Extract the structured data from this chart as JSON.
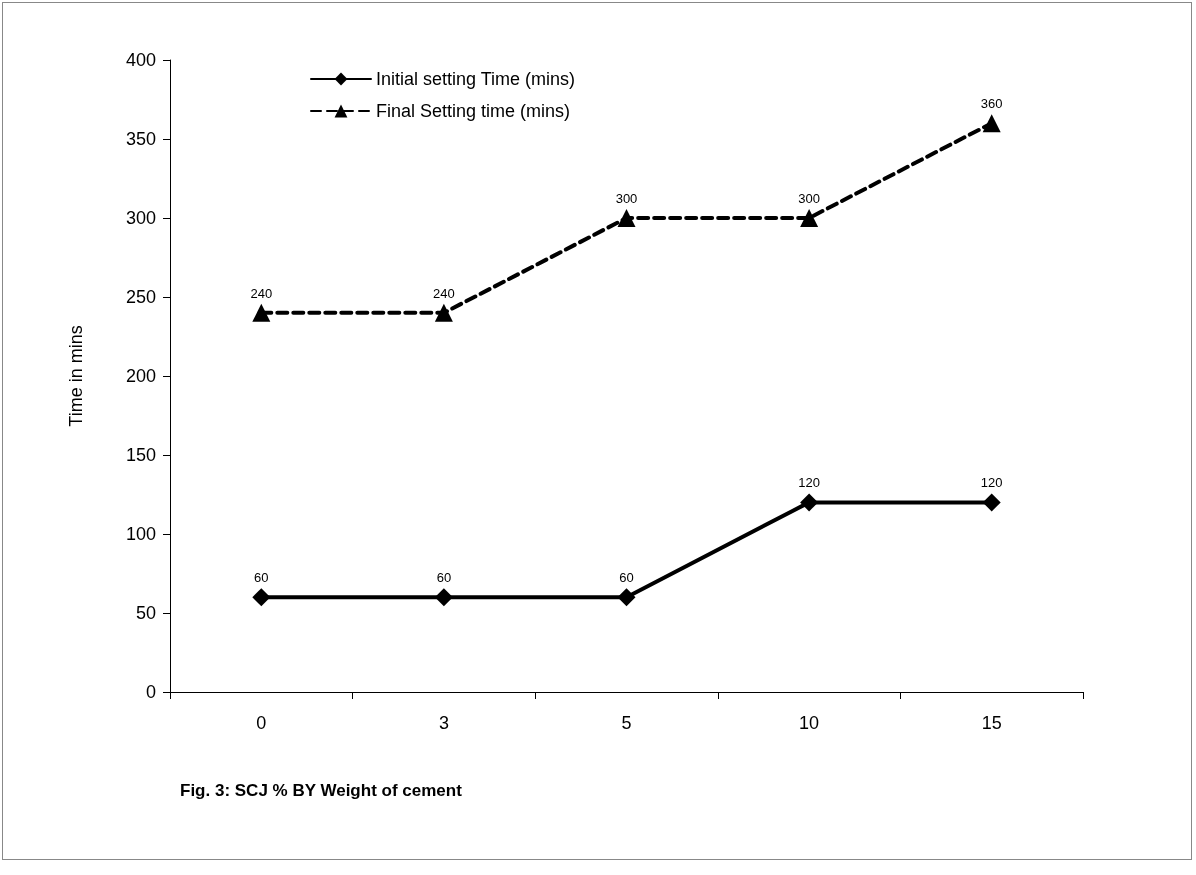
{
  "chart_data": {
    "type": "line",
    "xlabel": "Fig. 3: SCJ % BY Weight of cement",
    "ylabel": "Time in mins",
    "categories": [
      "0",
      "3",
      "5",
      "10",
      "15"
    ],
    "series": [
      {
        "name": "Initial setting Time (mins)",
        "color": "#000000",
        "marker": "diamond",
        "line_style": "solid",
        "values": [
          60,
          60,
          60,
          120,
          120
        ]
      },
      {
        "name": "Final Setting time (mins)",
        "color": "#000000",
        "marker": "triangle",
        "line_style": "dashed",
        "values": [
          240,
          240,
          300,
          300,
          360
        ]
      }
    ],
    "ylim": [
      0,
      400
    ],
    "yticks": [
      0,
      50,
      100,
      150,
      200,
      250,
      300,
      350,
      400
    ],
    "grid": false,
    "legend": "top",
    "data_labels": true
  }
}
